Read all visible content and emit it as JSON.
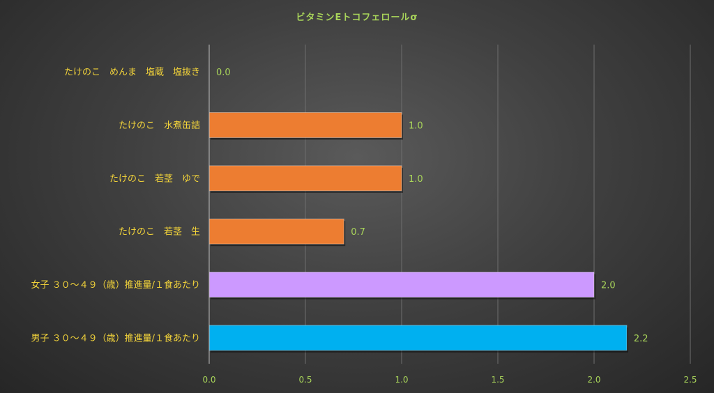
{
  "chart_data": {
    "type": "bar",
    "orientation": "horizontal",
    "title": "ビタミンEトコフェロールσ",
    "categories": [
      "たけのこ　めんま　塩蔵　塩抜き",
      "たけのこ　水煮缶詰",
      "たけのこ　若茎　ゆで",
      "たけのこ　若茎　生",
      "女子 ３０～４９（歳）推進量/１食あたり",
      "男子 ３０～４９（歳）推進量/１食あたり"
    ],
    "values": [
      0.0,
      1.0,
      1.0,
      0.7,
      2.0,
      2.17
    ],
    "value_labels": [
      "0.0",
      "1.0",
      "1.0",
      "0.7",
      "2.0",
      "2.2"
    ],
    "bar_colors": [
      "#ed7d31",
      "#ed7d31",
      "#ed7d31",
      "#ed7d31",
      "#cc99ff",
      "#00b0f0"
    ],
    "xlim": [
      0,
      2.5
    ],
    "x_ticks": [
      0,
      0.5,
      1.0,
      1.5,
      2.0,
      2.5
    ],
    "x_tick_labels": [
      "0.0",
      "0.5",
      "1.0",
      "1.5",
      "2.0",
      "2.5"
    ],
    "grid": "vertical",
    "colors": {
      "title": "#a9d55a",
      "category_labels": "#f2d33a",
      "value_labels": "#a9d55a",
      "gridlines": "#6e6e6e"
    }
  }
}
